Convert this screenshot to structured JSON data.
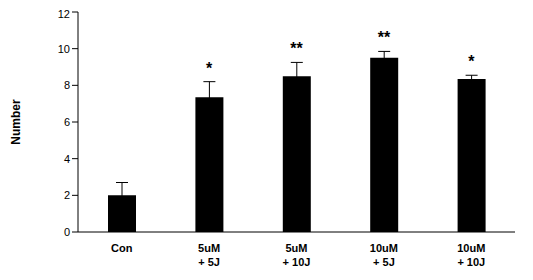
{
  "chart_data": {
    "type": "bar",
    "categories": [
      "Con",
      "5uM + 5J",
      "5uM + 10J",
      "10uM + 5J",
      "10uM + 10J"
    ],
    "values": [
      2.0,
      7.35,
      8.5,
      9.5,
      8.35
    ],
    "errors": [
      0.7,
      0.85,
      0.75,
      0.35,
      0.2
    ],
    "annotations": [
      null,
      "*",
      "**",
      "**",
      "*"
    ],
    "y_label": "Number",
    "color": "#000000",
    "ylim": [
      0,
      12
    ],
    "yticks": [
      0,
      2,
      4,
      6,
      8,
      10,
      12
    ],
    "grid": false
  }
}
